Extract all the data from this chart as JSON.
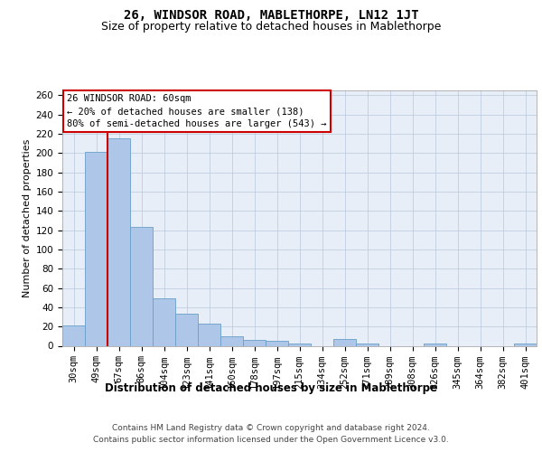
{
  "title": "26, WINDSOR ROAD, MABLETHORPE, LN12 1JT",
  "subtitle": "Size of property relative to detached houses in Mablethorpe",
  "xlabel": "Distribution of detached houses by size in Mablethorpe",
  "ylabel": "Number of detached properties",
  "categories": [
    "30sqm",
    "49sqm",
    "67sqm",
    "86sqm",
    "104sqm",
    "123sqm",
    "141sqm",
    "160sqm",
    "178sqm",
    "197sqm",
    "215sqm",
    "234sqm",
    "252sqm",
    "271sqm",
    "289sqm",
    "308sqm",
    "326sqm",
    "345sqm",
    "364sqm",
    "382sqm",
    "401sqm"
  ],
  "values": [
    21,
    201,
    215,
    123,
    49,
    33,
    23,
    10,
    6,
    5,
    2,
    0,
    7,
    2,
    0,
    0,
    2,
    0,
    0,
    0,
    2
  ],
  "bar_color": "#aec6e8",
  "bar_edgecolor": "#6a9fc8",
  "background_color": "#e8eef8",
  "vline_pos": 1.5,
  "vline_color": "#cc0000",
  "annotation_line1": "26 WINDSOR ROAD: 60sqm",
  "annotation_line2": "← 20% of detached houses are smaller (138)",
  "annotation_line3": "80% of semi-detached houses are larger (543) →",
  "annotation_box_facecolor": "#ffffff",
  "annotation_box_edgecolor": "#cc0000",
  "ylim": [
    0,
    265
  ],
  "yticks": [
    0,
    20,
    40,
    60,
    80,
    100,
    120,
    140,
    160,
    180,
    200,
    220,
    240,
    260
  ],
  "footer_line1": "Contains HM Land Registry data © Crown copyright and database right 2024.",
  "footer_line2": "Contains public sector information licensed under the Open Government Licence v3.0.",
  "title_fontsize": 10,
  "subtitle_fontsize": 9,
  "xlabel_fontsize": 8.5,
  "ylabel_fontsize": 8,
  "tick_fontsize": 7.5,
  "annotation_fontsize": 7.5,
  "footer_fontsize": 6.5
}
